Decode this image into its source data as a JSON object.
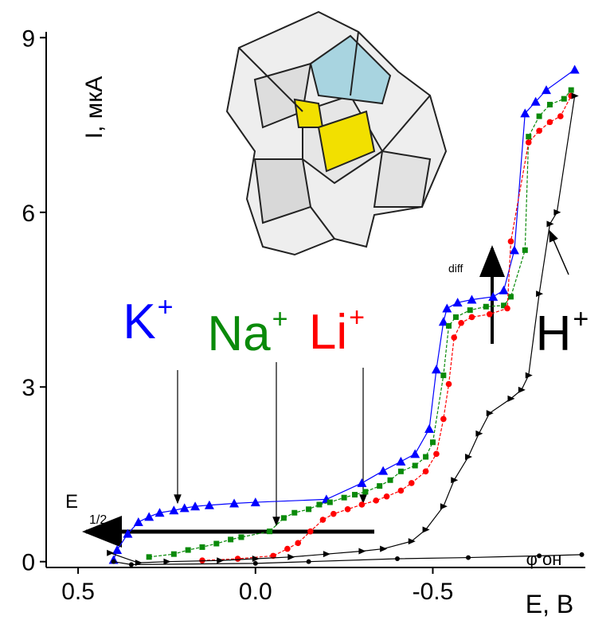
{
  "chart_data": {
    "type": "line",
    "x_label": "E, B",
    "y_label": "I, мкА",
    "xlim": [
      0.59,
      -0.93
    ],
    "ylim": [
      -0.1,
      9.1
    ],
    "xticks": [
      0.5,
      {
        "value": 0,
        "label": "0.0"
      },
      -0.5
    ],
    "yticks": [
      0,
      3,
      6,
      9
    ],
    "series": [
      {
        "name": "K",
        "sup": "+",
        "color": "#0000ff",
        "marker": "triangle",
        "x": [
          0.4,
          0.39,
          0.36,
          0.33,
          0.3,
          0.27,
          0.23,
          0.2,
          0.17,
          0.13,
          0.06,
          0.0,
          -0.2,
          -0.3,
          -0.36,
          -0.41,
          -0.45,
          -0.49,
          -0.51,
          -0.53,
          -0.54,
          -0.57,
          -0.61,
          -0.67,
          -0.7,
          -0.73,
          -0.76,
          -0.79,
          -0.82,
          -0.9
        ],
        "values": [
          0.03,
          0.2,
          0.48,
          0.68,
          0.77,
          0.84,
          0.88,
          0.92,
          0.95,
          0.97,
          1.0,
          1.02,
          1.07,
          1.35,
          1.56,
          1.72,
          1.85,
          2.28,
          3.3,
          4.12,
          4.35,
          4.45,
          4.5,
          4.55,
          4.66,
          5.35,
          7.7,
          7.9,
          8.1,
          8.45
        ]
      },
      {
        "name": "Na",
        "sup": "+",
        "color": "#0a8a0a",
        "marker": "square",
        "x": [
          0.3,
          0.23,
          0.19,
          0.15,
          0.11,
          0.07,
          0.04,
          -0.04,
          -0.08,
          -0.11,
          -0.15,
          -0.18,
          -0.21,
          -0.25,
          -0.28,
          -0.31,
          -0.35,
          -0.38,
          -0.41,
          -0.45,
          -0.48,
          -0.5,
          -0.53,
          -0.545,
          -0.565,
          -0.605,
          -0.65,
          -0.7,
          -0.72,
          -0.76,
          -0.77,
          -0.8,
          -0.83,
          -0.87,
          -0.89
        ],
        "values": [
          0.08,
          0.13,
          0.2,
          0.25,
          0.31,
          0.38,
          0.42,
          0.52,
          0.75,
          0.84,
          0.9,
          0.98,
          1.02,
          1.1,
          1.15,
          1.2,
          1.3,
          1.4,
          1.55,
          1.65,
          1.8,
          2.05,
          3.2,
          4.05,
          4.2,
          4.32,
          4.38,
          4.4,
          4.55,
          5.35,
          7.3,
          7.65,
          7.85,
          7.95,
          8.1
        ]
      },
      {
        "name": "Li",
        "sup": "+",
        "color": "#ff0000",
        "marker": "circle",
        "x": [
          0.15,
          0.05,
          -0.05,
          -0.09,
          -0.12,
          -0.155,
          -0.19,
          -0.22,
          -0.26,
          -0.3,
          -0.34,
          -0.37,
          -0.41,
          -0.44,
          -0.48,
          -0.51,
          -0.53,
          -0.545,
          -0.56,
          -0.58,
          -0.61,
          -0.66,
          -0.71,
          -0.72,
          -0.77,
          -0.8,
          -0.83,
          -0.86,
          -0.89
        ],
        "values": [
          0.02,
          0.05,
          0.1,
          0.22,
          0.32,
          0.52,
          0.72,
          0.82,
          0.9,
          0.98,
          1.05,
          1.12,
          1.22,
          1.35,
          1.55,
          1.85,
          2.45,
          3.05,
          3.85,
          4.1,
          4.2,
          4.25,
          4.35,
          5.5,
          7.2,
          7.4,
          7.55,
          7.65,
          8.0
        ]
      },
      {
        "name": "H",
        "sup": "+",
        "color": "#000000",
        "marker": "triangle-right",
        "x": [
          0.41,
          0.33,
          0.25,
          0.1,
          0.0,
          -0.1,
          -0.2,
          -0.3,
          -0.36,
          -0.44,
          -0.48,
          -0.53,
          -0.56,
          -0.6,
          -0.63,
          -0.66,
          -0.72,
          -0.75,
          -0.77,
          -0.8,
          -0.83,
          -0.85,
          -0.9
        ],
        "values": [
          0.15,
          -0.02,
          0.0,
          0.02,
          0.05,
          0.08,
          0.13,
          0.18,
          0.22,
          0.35,
          0.55,
          0.95,
          1.4,
          1.8,
          2.2,
          2.55,
          2.8,
          2.95,
          3.2,
          4.6,
          5.8,
          6.0,
          8.0
        ]
      },
      {
        "name": "φ он",
        "color": "#000000",
        "marker": "dot",
        "x": [
          0.4,
          0.35,
          0.0,
          -0.15,
          -0.4,
          -0.6,
          -0.8,
          -0.92
        ],
        "values": [
          0.0,
          -0.05,
          -0.03,
          0.0,
          0.05,
          0.07,
          0.1,
          0.12
        ]
      }
    ],
    "annotations": {
      "e_half": "E",
      "e_half_sub": "1/2",
      "diff": "diff"
    }
  }
}
